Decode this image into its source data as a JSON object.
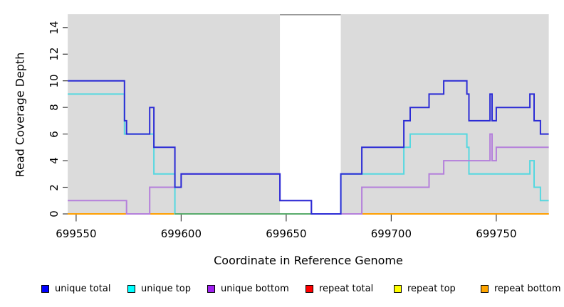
{
  "chart_data": {
    "type": "step-line",
    "title": "",
    "xlabel": "Coordinate in Reference Genome",
    "ylabel": "Read Coverage Depth",
    "xlim": [
      699546,
      699777
    ],
    "ylim": [
      0,
      15
    ],
    "grid": false,
    "legend_position": "bottom",
    "xticks": [
      {
        "value": 699550,
        "label": "699550"
      },
      {
        "value": 699600,
        "label": "699600"
      },
      {
        "value": 699650,
        "label": "699650"
      },
      {
        "value": 699700,
        "label": "699700"
      },
      {
        "value": 699750,
        "label": "699750"
      }
    ],
    "yticks": [
      {
        "value": 0,
        "label": "0"
      },
      {
        "value": 2,
        "label": "2"
      },
      {
        "value": 4,
        "label": "4"
      },
      {
        "value": 6,
        "label": "6"
      },
      {
        "value": 8,
        "label": "8"
      },
      {
        "value": 10,
        "label": "10"
      },
      {
        "value": 12,
        "label": "12"
      },
      {
        "value": 14,
        "label": "14"
      }
    ],
    "x_data_start": 699546,
    "x_data_end": 699775,
    "shaded_regions": [
      {
        "from": 699546,
        "to": 699647
      },
      {
        "from": 699676,
        "to": 699775
      }
    ],
    "gap_region": {
      "from": 699647,
      "to": 699676,
      "top_border_color": "#8f8f8f"
    },
    "background_band_color": "#dbdbdb",
    "series": [
      {
        "name": "unique total",
        "color": "#0000ff",
        "line_color": "#2b2bd5",
        "points": [
          [
            699546,
            10
          ],
          [
            699573,
            7
          ],
          [
            699574,
            6
          ],
          [
            699585,
            8
          ],
          [
            699587,
            5
          ],
          [
            699597,
            2
          ],
          [
            699600,
            3
          ],
          [
            699647,
            1
          ],
          [
            699662,
            0
          ],
          [
            699676,
            3
          ],
          [
            699686,
            5
          ],
          [
            699706,
            7
          ],
          [
            699709,
            8
          ],
          [
            699718,
            9
          ],
          [
            699725,
            10
          ],
          [
            699736,
            9
          ],
          [
            699737,
            7
          ],
          [
            699747,
            9
          ],
          [
            699748,
            7
          ],
          [
            699750,
            8
          ],
          [
            699766,
            9
          ],
          [
            699768,
            7
          ],
          [
            699771,
            6
          ]
        ]
      },
      {
        "name": "unique top",
        "color": "#00ffff",
        "line_color": "#55d8e0",
        "points": [
          [
            699546,
            9
          ],
          [
            699573,
            6
          ],
          [
            699587,
            3
          ],
          [
            699597,
            0
          ],
          [
            699676,
            3
          ],
          [
            699706,
            5
          ],
          [
            699709,
            6
          ],
          [
            699736,
            5
          ],
          [
            699737,
            3
          ],
          [
            699766,
            4
          ],
          [
            699768,
            2
          ],
          [
            699771,
            1
          ]
        ]
      },
      {
        "name": "unique bottom",
        "color": "#a020f0",
        "line_color": "#b47fdb",
        "points": [
          [
            699546,
            1
          ],
          [
            699574,
            0
          ],
          [
            699585,
            2
          ],
          [
            699600,
            3
          ],
          [
            699647,
            1
          ],
          [
            699662,
            0
          ],
          [
            699686,
            2
          ],
          [
            699718,
            3
          ],
          [
            699725,
            4
          ],
          [
            699747,
            6
          ],
          [
            699748,
            4
          ],
          [
            699750,
            5
          ]
        ]
      },
      {
        "name": "repeat total",
        "color": "#ff0000",
        "line_color": "#ee0000",
        "points": [
          [
            699546,
            0
          ]
        ]
      },
      {
        "name": "repeat top",
        "color": "#ffff00",
        "line_color": "#f5e400",
        "points": [
          [
            699546,
            0
          ]
        ]
      },
      {
        "name": "repeat bottom",
        "color": "#ffa500",
        "line_color": "#ff9f00",
        "points": [
          [
            699546,
            0
          ]
        ]
      }
    ],
    "baseline_blend_segment": {
      "from": 699597,
      "to": 699676,
      "color": "#58ab6b"
    }
  },
  "legend": {
    "items": [
      {
        "label": "unique total",
        "color": "#0000ff"
      },
      {
        "label": "unique top",
        "color": "#00ffff"
      },
      {
        "label": "unique bottom",
        "color": "#a020f0"
      },
      {
        "label": "repeat total",
        "color": "#ff0000"
      },
      {
        "label": "repeat top",
        "color": "#ffff00"
      },
      {
        "label": "repeat bottom",
        "color": "#ffa500"
      }
    ]
  }
}
